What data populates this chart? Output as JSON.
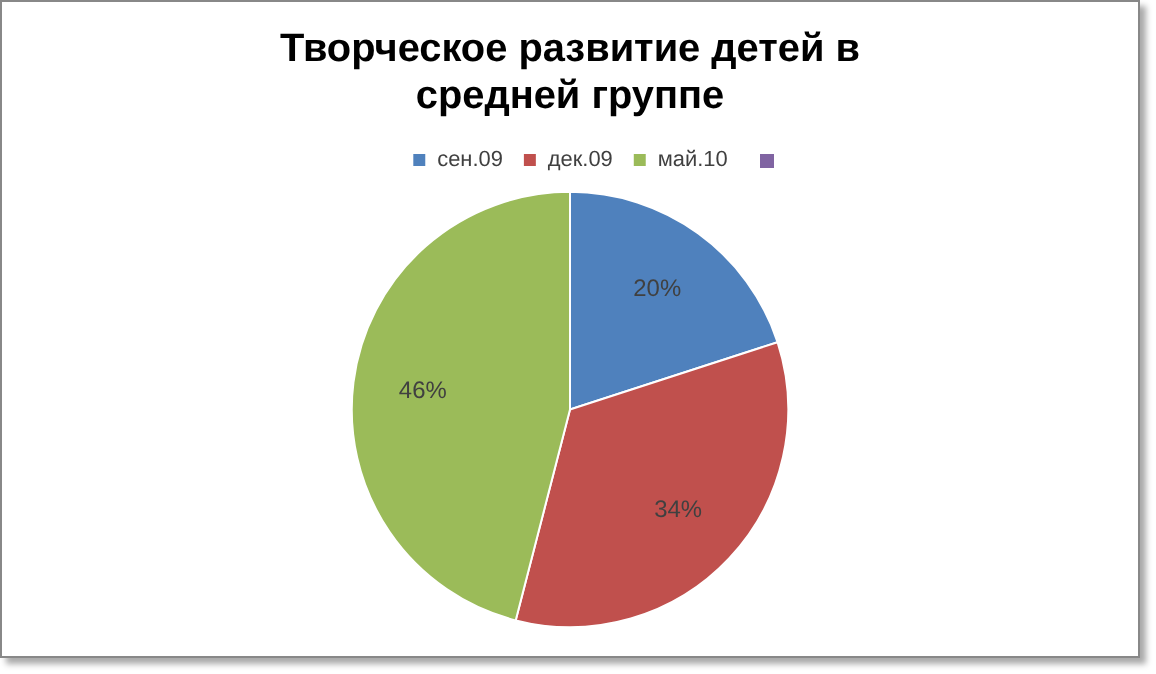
{
  "chart_data": {
    "type": "pie",
    "title": "Творческое развитие детей в средней группе",
    "categories": [
      "сен.09",
      "дек.09",
      "май.10"
    ],
    "values": [
      20,
      34,
      46
    ],
    "colors": [
      "#4f81bd",
      "#c0504d",
      "#9bbb59"
    ],
    "value_labels": [
      "20%",
      "34%",
      "46%"
    ],
    "legend": "top"
  }
}
